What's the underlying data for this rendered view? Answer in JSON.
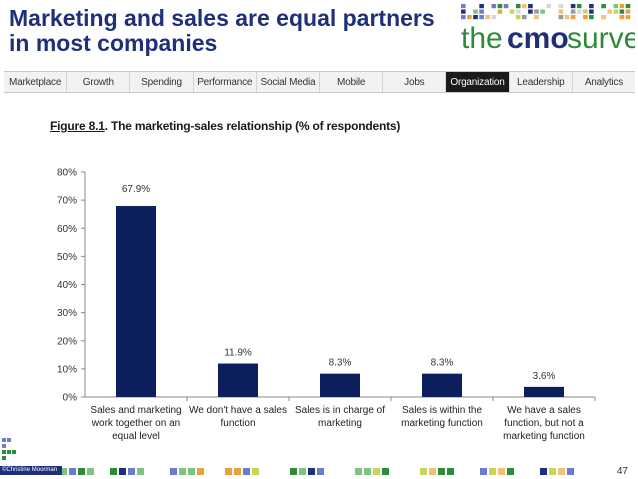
{
  "header": {
    "title_line1": "Marketing and sales are equal partners",
    "title_line2": "in most companies",
    "logo": {
      "word1": "the",
      "word2": "cmo",
      "word3": "survey",
      "word2_color": "#1f2f7a",
      "accent": "#2e8b3a"
    }
  },
  "nav": {
    "tabs": [
      {
        "label": "Marketplace",
        "active": false
      },
      {
        "label": "Growth",
        "active": false
      },
      {
        "label": "Spending",
        "active": false
      },
      {
        "label": "Performance",
        "active": false
      },
      {
        "label": "Social Media",
        "active": false
      },
      {
        "label": "Mobile",
        "active": false
      },
      {
        "label": "Jobs",
        "active": false
      },
      {
        "label": "Organization",
        "active": true
      },
      {
        "label": "Leadership",
        "active": false
      },
      {
        "label": "Analytics",
        "active": false
      }
    ]
  },
  "figure": {
    "number": "Figure 8.1",
    "title": ".  The marketing-sales relationship (% of respondents)"
  },
  "chart_data": {
    "type": "bar",
    "title": "The marketing-sales relationship (% of respondents)",
    "categories": [
      [
        "Sales and marketing",
        "work together on an",
        "equal level"
      ],
      [
        "We don't have a sales",
        "function"
      ],
      [
        "Sales is in charge of",
        "marketing"
      ],
      [
        "Sales is within the",
        "marketing function"
      ],
      [
        "We have a sales",
        "function, but not a",
        "marketing function"
      ]
    ],
    "values": [
      67.9,
      11.9,
      8.3,
      8.3,
      3.6
    ],
    "data_labels": [
      "67.9%",
      "11.9%",
      "8.3%",
      "8.3%",
      "3.6%"
    ],
    "ylim": [
      0,
      80
    ],
    "yticks": [
      "0%",
      "10%",
      "20%",
      "30%",
      "40%",
      "50%",
      "60%",
      "70%",
      "80%"
    ],
    "bar_color": "#0c1f5c",
    "grid": false
  },
  "footer": {
    "copyright": "©Christine Moorman",
    "page_number": "47"
  }
}
